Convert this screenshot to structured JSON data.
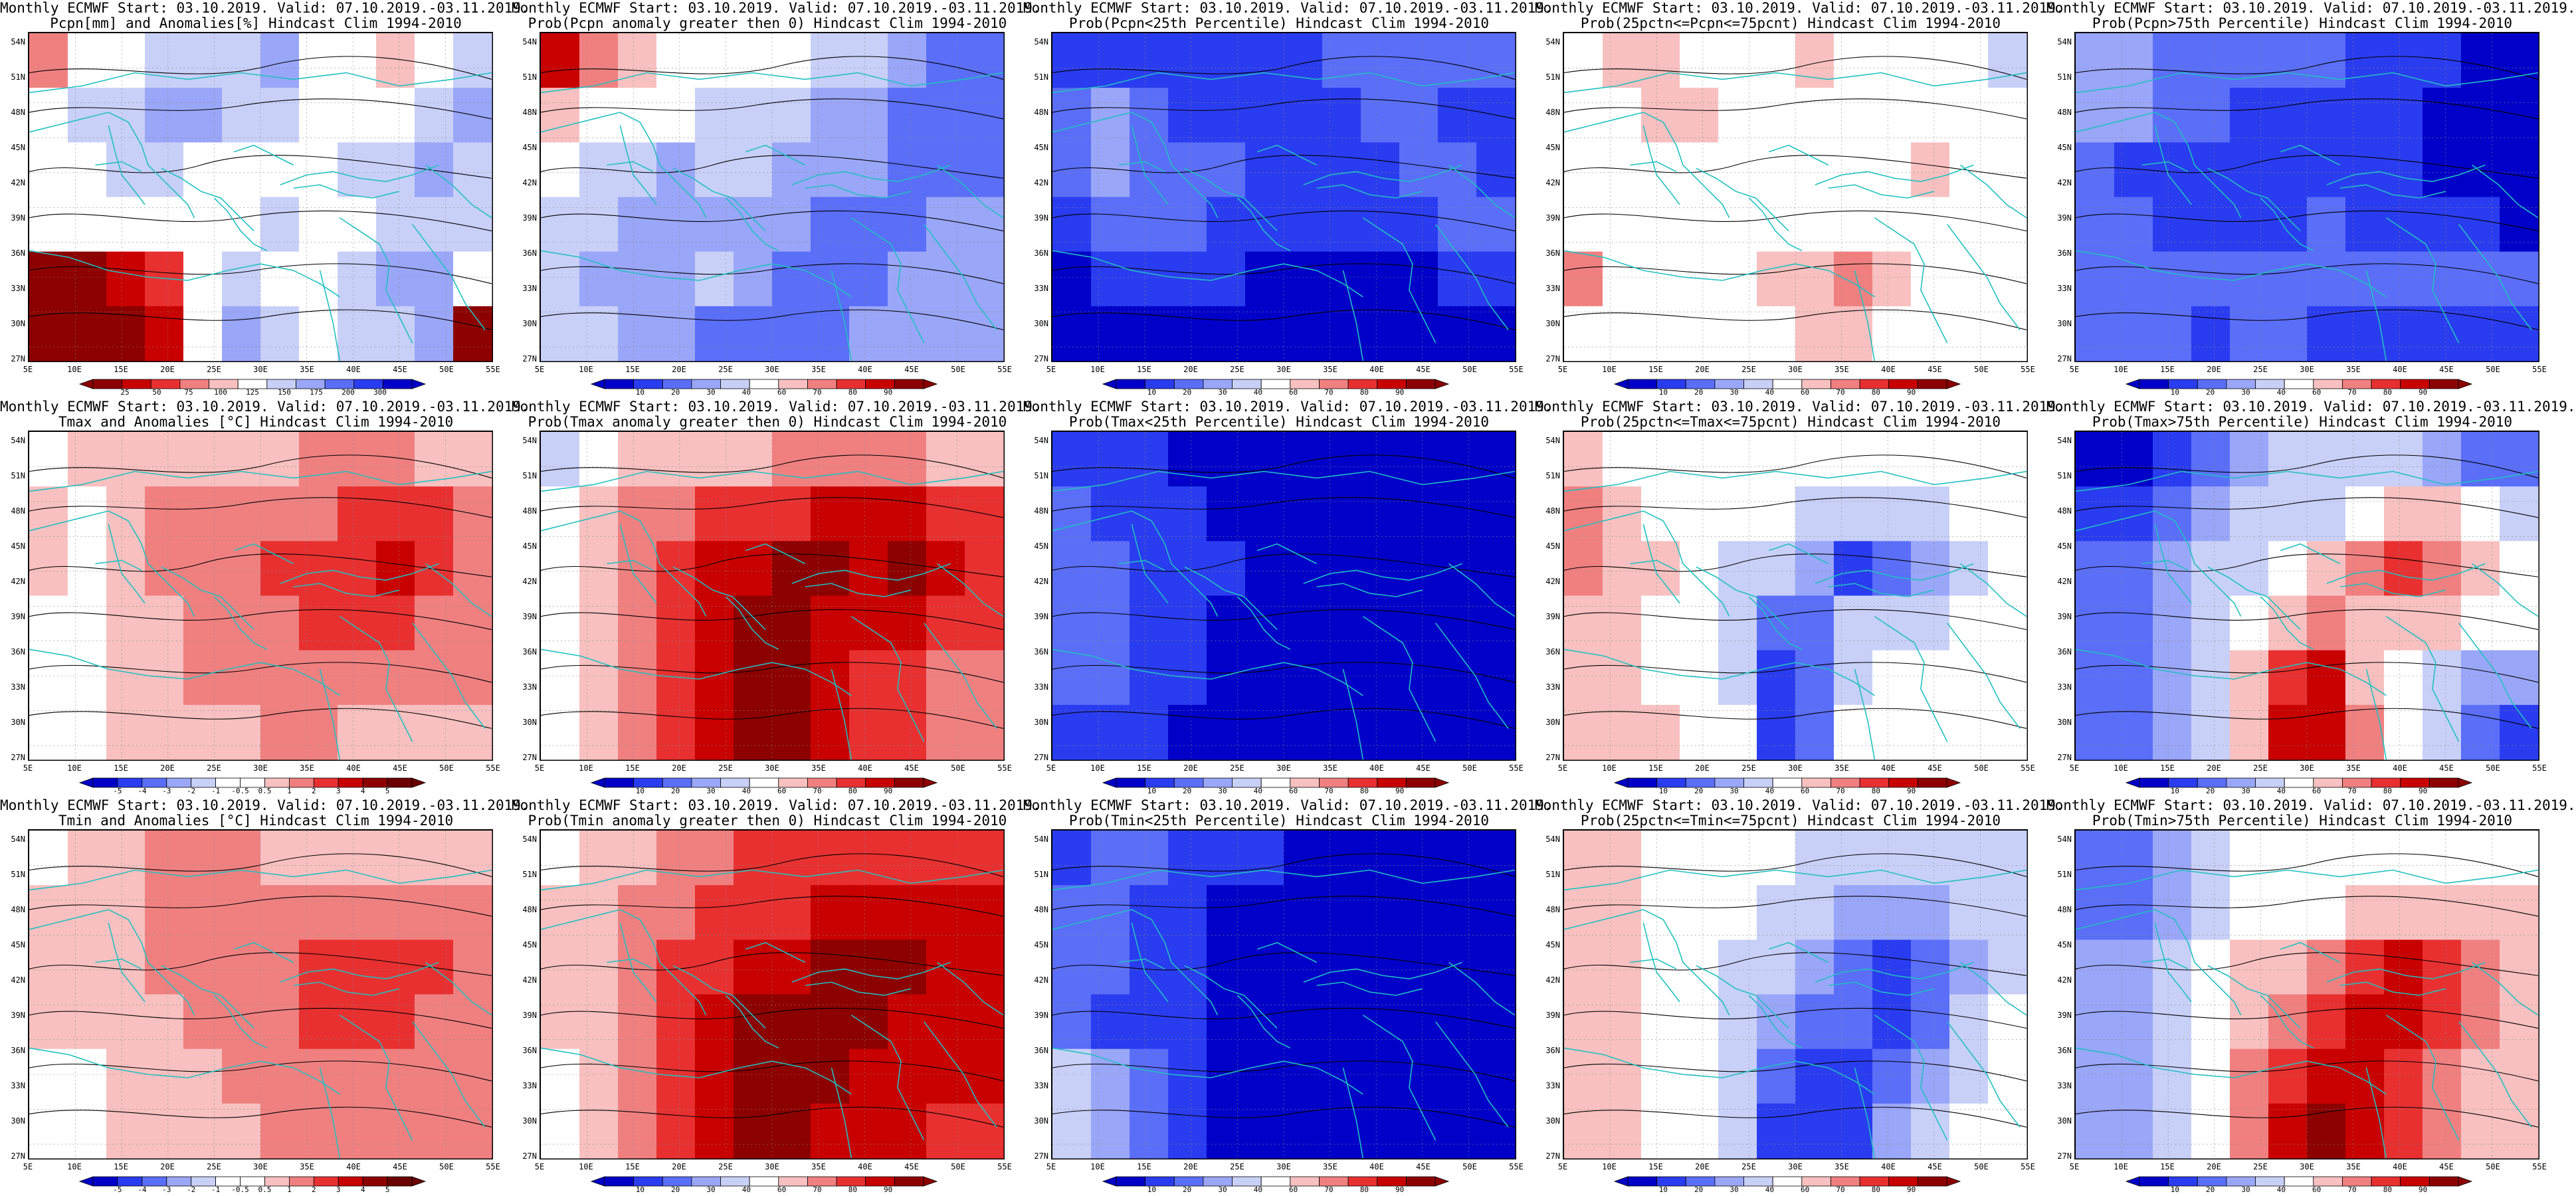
{
  "panels": [
    {
      "title1": "Monthly ECMWF Start: 03.10.2019. Valid: 07.10.2019.-03.11.2019.",
      "title2": "Pcpn[mm] and Anomalies[%] Hindcast Clim 1994-2010",
      "scale": "precip_anom",
      "colorbar": [
        "25",
        "50",
        "75",
        "100",
        "125",
        "150",
        "175",
        "200",
        "300"
      ],
      "map": "pcpn-anomaly"
    },
    {
      "title1": "Monthly ECMWF Start: 03.10.2019. Valid: 07.10.2019.-03.11.2019.",
      "title2": "Prob(Pcpn anomaly greater then 0) Hindcast Clim 1994-2010",
      "scale": "prob",
      "colorbar": [
        "10",
        "20",
        "30",
        "40",
        "60",
        "70",
        "80",
        "90"
      ],
      "map": "pcpn-prob-pos"
    },
    {
      "title1": "Monthly ECMWF Start: 03.10.2019. Valid: 07.10.2019.-03.11.2019.",
      "title2": "Prob(Pcpn<25th Percentile) Hindcast Clim 1994-2010",
      "scale": "prob",
      "colorbar": [
        "10",
        "20",
        "30",
        "40",
        "60",
        "70",
        "80",
        "90"
      ],
      "map": "pcpn-lt25"
    },
    {
      "title1": "Monthly ECMWF Start: 03.10.2019. Valid: 07.10.2019.-03.11.2019.",
      "title2": "Prob(25pctn<=Pcpn<=75pcnt) Hindcast Clim 1994-2010",
      "scale": "prob",
      "colorbar": [
        "10",
        "20",
        "30",
        "40",
        "60",
        "70",
        "80",
        "90"
      ],
      "map": "pcpn-mid"
    },
    {
      "title1": "Monthly ECMWF Start: 03.10.2019. Valid: 07.10.2019.-03.11.2019.",
      "title2": "Prob(Pcpn>75th Percentile) Hindcast Clim 1994-2010",
      "scale": "prob",
      "colorbar": [
        "10",
        "20",
        "30",
        "40",
        "60",
        "70",
        "80",
        "90"
      ],
      "map": "pcpn-gt75"
    },
    {
      "title1": "Monthly ECMWF Start: 03.10.2019. Valid: 07.10.2019.-03.11.2019.",
      "title2": "Tmax and Anomalies [°C] Hindcast Clim 1994-2010",
      "scale": "temp_anom",
      "colorbar": [
        "-5",
        "-4",
        "-3",
        "-2",
        "-1",
        "-0.5",
        "0.5",
        "1",
        "2",
        "3",
        "4",
        "5"
      ],
      "map": "tmax-anomaly"
    },
    {
      "title1": "Monthly ECMWF Start: 03.10.2019. Valid: 07.10.2019.-03.11.2019.",
      "title2": "Prob(Tmax anomaly greater then 0) Hindcast Clim 1994-2010",
      "scale": "prob",
      "colorbar": [
        "10",
        "20",
        "30",
        "40",
        "60",
        "70",
        "80",
        "90"
      ],
      "map": "tmax-prob-pos"
    },
    {
      "title1": "Monthly ECMWF Start: 03.10.2019. Valid: 07.10.2019.-03.11.2019.",
      "title2": "Prob(Tmax<25th Percentile) Hindcast Clim 1994-2010",
      "scale": "prob",
      "colorbar": [
        "10",
        "20",
        "30",
        "40",
        "60",
        "70",
        "80",
        "90"
      ],
      "map": "tmax-lt25"
    },
    {
      "title1": "Monthly ECMWF Start: 03.10.2019. Valid: 07.10.2019.-03.11.2019.",
      "title2": "Prob(25pctn<=Tmax<=75pcnt) Hindcast Clim 1994-2010",
      "scale": "prob",
      "colorbar": [
        "10",
        "20",
        "30",
        "40",
        "60",
        "70",
        "80",
        "90"
      ],
      "map": "tmax-mid"
    },
    {
      "title1": "Monthly ECMWF Start: 03.10.2019. Valid: 07.10.2019.-03.11.2019.",
      "title2": "Prob(Tmax>75th Percentile) Hindcast Clim 1994-2010",
      "scale": "prob",
      "colorbar": [
        "10",
        "20",
        "30",
        "40",
        "60",
        "70",
        "80",
        "90"
      ],
      "map": "tmax-gt75"
    },
    {
      "title1": "Monthly ECMWF Start: 03.10.2019. Valid: 07.10.2019.-03.11.2019.",
      "title2": "Tmin and Anomalies [°C] Hindcast Clim 1994-2010",
      "scale": "temp_anom",
      "colorbar": [
        "-5",
        "-4",
        "-3",
        "-2",
        "-1",
        "-0.5",
        "0.5",
        "1",
        "2",
        "3",
        "4",
        "5"
      ],
      "map": "tmin-anomaly"
    },
    {
      "title1": "Monthly ECMWF Start: 03.10.2019. Valid: 07.10.2019.-03.11.2019.",
      "title2": "Prob(Tmin anomaly greater then 0) Hindcast Clim 1994-2010",
      "scale": "prob",
      "colorbar": [
        "10",
        "20",
        "30",
        "40",
        "60",
        "70",
        "80",
        "90"
      ],
      "map": "tmin-prob-pos"
    },
    {
      "title1": "Monthly ECMWF Start: 03.10.2019. Valid: 07.10.2019.-03.11.2019.",
      "title2": "Prob(Tmin<25th Percentile) Hindcast Clim 1994-2010",
      "scale": "prob",
      "colorbar": [
        "10",
        "20",
        "30",
        "40",
        "60",
        "70",
        "80",
        "90"
      ],
      "map": "tmin-lt25"
    },
    {
      "title1": "Monthly ECMWF Start: 03.10.2019. Valid: 07.10.2019.-03.11.2019.",
      "title2": "Prob(25pctn<=Tmin<=75pcnt) Hindcast Clim 1994-2010",
      "scale": "prob",
      "colorbar": [
        "10",
        "20",
        "30",
        "40",
        "60",
        "70",
        "80",
        "90"
      ],
      "map": "tmin-mid"
    },
    {
      "title1": "Monthly ECMWF Start: 03.10.2019. Valid: 07.10.2019.-03.11.2019.",
      "title2": "Prob(Tmin>75th Percentile) Hindcast Clim 1994-2010",
      "scale": "prob",
      "colorbar": [
        "10",
        "20",
        "30",
        "40",
        "60",
        "70",
        "80",
        "90"
      ],
      "map": "tmin-gt75"
    }
  ],
  "lat_labels": [
    "54N",
    "51N",
    "48N",
    "45N",
    "42N",
    "39N",
    "36N",
    "33N",
    "30N",
    "27N"
  ],
  "lon_labels": [
    "5E",
    "10E",
    "15E",
    "20E",
    "25E",
    "30E",
    "35E",
    "40E",
    "45E",
    "50E",
    "55E"
  ],
  "colors": {
    "coast": "#20c0c0",
    "contour": "#000000",
    "prob_scale": [
      "#0000c8",
      "#2a3cf0",
      "#5a6ef8",
      "#9aa6f8",
      "#c8d0f8",
      "#ffffff",
      "#f8c0c0",
      "#f08080",
      "#e83030",
      "#c80000",
      "#8c0000"
    ],
    "temp_scale": [
      "#0000c8",
      "#2a3cf0",
      "#5a6ef8",
      "#9aa6f8",
      "#c8d0f8",
      "#ffffff",
      "#ffffff",
      "#f8c0c0",
      "#f08080",
      "#e83030",
      "#c80000",
      "#8c0000",
      "#6a0000"
    ],
    "precip_scale": [
      "#8c0000",
      "#c80000",
      "#e83030",
      "#f08080",
      "#f8c0c0",
      "#ffffff",
      "#c8d0f8",
      "#9aa6f8",
      "#5a6ef8",
      "#2a3cf0",
      "#0000c8"
    ]
  }
}
